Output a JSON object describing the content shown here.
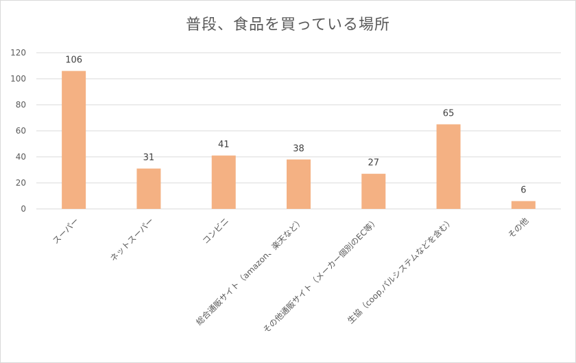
{
  "chart_data": {
    "type": "bar",
    "title": "普段、食品を買っている場所",
    "categories": [
      "スーパー",
      "ネットスーパー",
      "コンビニ",
      "総合通販サイト（amazon、楽天など）",
      "その他通販サイト（メーカー個別のEC等）",
      "生協（coop,パルシステムなどを含む）",
      "その他"
    ],
    "values": [
      106,
      31,
      41,
      38,
      27,
      65,
      6
    ],
    "ylim": [
      0,
      120
    ],
    "yticks": [
      0,
      20,
      40,
      60,
      80,
      100,
      120
    ],
    "grid": true,
    "legend": "none",
    "bar_color": "#f4b183",
    "grid_color": "#d9d9d9"
  }
}
